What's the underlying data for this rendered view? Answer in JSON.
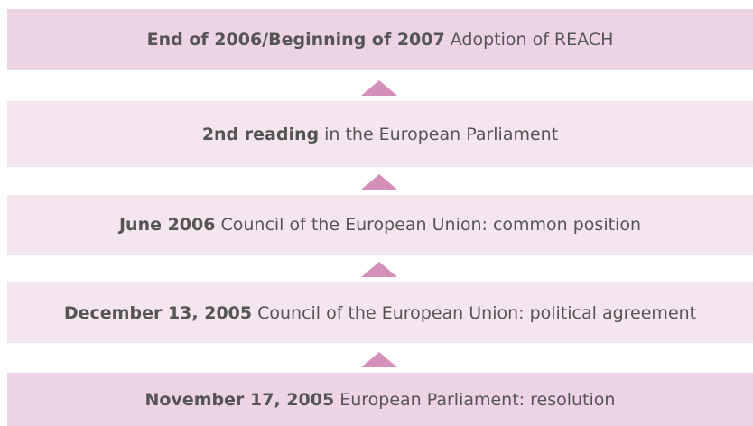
{
  "steps": [
    {
      "date": "End of 2006/Beginning of 2007",
      "text": "Adoption of REACH"
    },
    {
      "date": "2nd reading",
      "text": "in the European Parliament"
    },
    {
      "date": "June 2006",
      "text": "Council of the European Union: common position"
    },
    {
      "date": "December 13, 2005",
      "text": "Council of the European Union: political agreement"
    },
    {
      "date": "November 17, 2005",
      "text": "European Parliament: resolution"
    }
  ]
}
